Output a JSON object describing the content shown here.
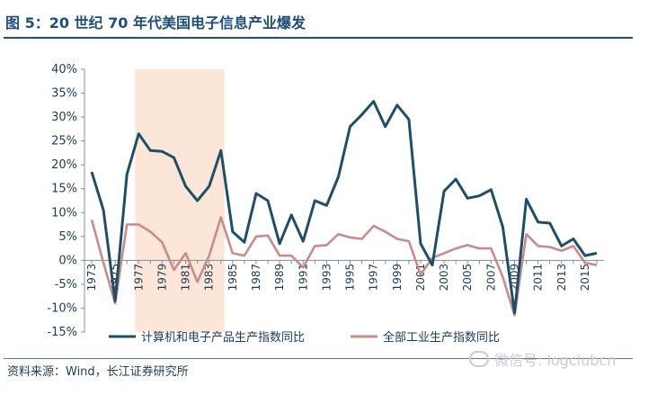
{
  "header": {
    "title": "图 5：20 世纪 70 年代美国电子信息产业爆发"
  },
  "footer": {
    "source": "资料来源：Wind，长江证券研究所",
    "watermark": "微信号: logclubcn"
  },
  "chart_data": {
    "type": "line",
    "title": "",
    "xlabel": "",
    "ylabel": "",
    "x": [
      1973,
      1974,
      1975,
      1976,
      1977,
      1978,
      1979,
      1980,
      1981,
      1982,
      1983,
      1984,
      1985,
      1986,
      1987,
      1988,
      1989,
      1990,
      1991,
      1992,
      1993,
      1994,
      1995,
      1996,
      1997,
      1998,
      1999,
      2000,
      2001,
      2002,
      2003,
      2004,
      2005,
      2006,
      2007,
      2008,
      2009,
      2010,
      2011,
      2012,
      2013,
      2014,
      2015,
      2016
    ],
    "x_tick_labels": [
      "1973",
      "1975",
      "1977",
      "1979",
      "1981",
      "1983",
      "1985",
      "1987",
      "1989",
      "1991",
      "1993",
      "1995",
      "1997",
      "1999",
      "2001",
      "2003",
      "2005",
      "2007",
      "2009",
      "2011",
      "2013",
      "2015"
    ],
    "ylim": [
      -15,
      40
    ],
    "y_ticks": [
      "-15%",
      "-10%",
      "-5%",
      "0%",
      "5%",
      "10%",
      "15%",
      "20%",
      "25%",
      "30%",
      "35%",
      "40%"
    ],
    "y_tick_values": [
      -15,
      -10,
      -5,
      0,
      5,
      10,
      15,
      20,
      25,
      30,
      35,
      40
    ],
    "highlight_range": [
      1976.7,
      1984.3
    ],
    "grid": false,
    "legend_position": "bottom",
    "series": [
      {
        "name": "计算机和电子产品生产指数同比",
        "color": "#1f4e68",
        "values": [
          18.5,
          10.5,
          -8.5,
          18.0,
          26.5,
          23.0,
          22.8,
          21.5,
          15.5,
          12.5,
          15.5,
          23.0,
          6.0,
          3.8,
          14.0,
          12.5,
          3.5,
          9.5,
          4.0,
          12.5,
          11.5,
          17.5,
          28.0,
          30.5,
          33.3,
          28.0,
          32.5,
          29.5,
          3.5,
          -1.0,
          14.5,
          17.0,
          13.0,
          13.5,
          14.8,
          7.0,
          -11.0,
          12.8,
          8.0,
          7.8,
          3.0,
          4.5,
          1.0,
          1.5
        ]
      },
      {
        "name": "全部工业生产指数同比",
        "color": "#c98b8b",
        "values": [
          8.5,
          -0.5,
          -9.0,
          7.5,
          7.5,
          6.0,
          3.8,
          -2.0,
          1.5,
          -4.5,
          1.0,
          9.0,
          1.5,
          1.0,
          5.0,
          5.2,
          1.0,
          1.0,
          -1.5,
          3.0,
          3.2,
          5.5,
          4.8,
          4.5,
          7.2,
          6.0,
          4.5,
          4.0,
          -3.0,
          0.5,
          1.5,
          2.5,
          3.2,
          2.5,
          2.5,
          -3.5,
          -11.5,
          5.5,
          3.0,
          2.8,
          2.0,
          3.0,
          -0.5,
          -1.0
        ]
      }
    ]
  }
}
